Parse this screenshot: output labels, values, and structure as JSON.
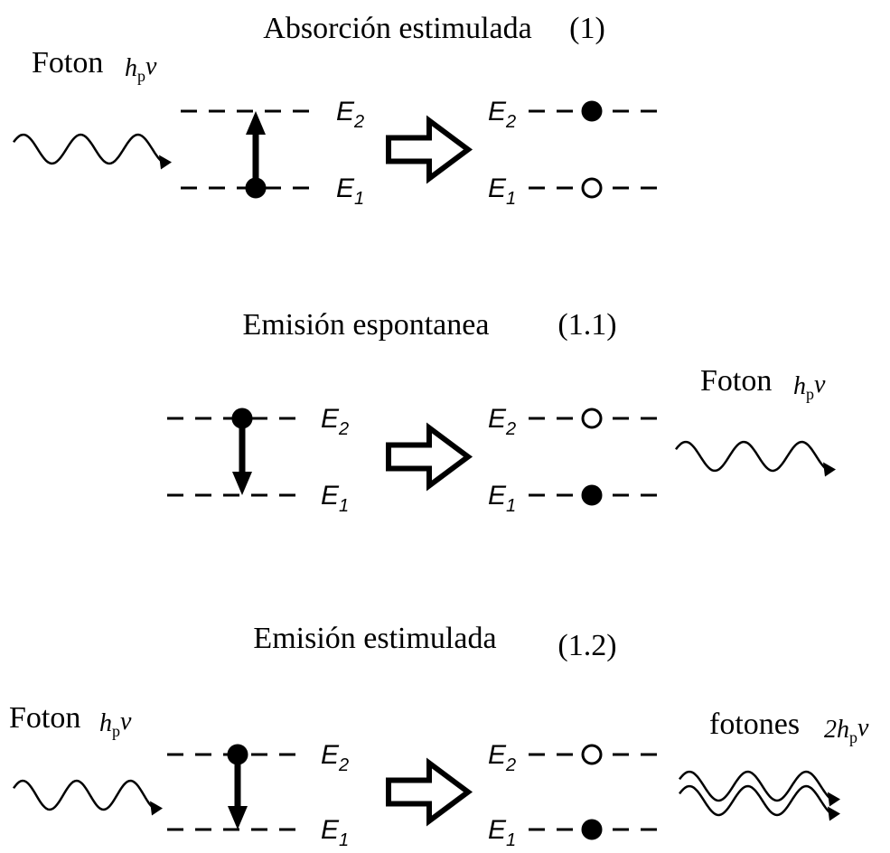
{
  "sections": [
    {
      "title": "Absorción estimulada",
      "number": "(1)",
      "photon_in": {
        "text": "Foton",
        "symbol": {
          "main": "h",
          "sub": "p",
          "tail": "ν"
        }
      },
      "levels": {
        "upper": {
          "main": "E",
          "sub": "2"
        },
        "lower": {
          "main": "E",
          "sub": "1"
        }
      }
    },
    {
      "title": "Emisión espontanea",
      "number": "(1.1)",
      "photon_out": {
        "text": "Foton",
        "symbol": {
          "main": "h",
          "sub": "p",
          "tail": "ν"
        }
      },
      "levels": {
        "upper": {
          "main": "E",
          "sub": "2"
        },
        "lower": {
          "main": "E",
          "sub": "1"
        }
      }
    },
    {
      "title": "Emisión estimulada",
      "number": "(1.2)",
      "photon_in": {
        "text": "Foton",
        "symbol": {
          "main": "h",
          "sub": "p",
          "tail": "ν"
        }
      },
      "photon_out": {
        "text": "fotones",
        "symbol": {
          "main": "2h",
          "sub": "p",
          "tail": "ν"
        }
      },
      "levels": {
        "upper": {
          "main": "E",
          "sub": "2"
        },
        "lower": {
          "main": "E",
          "sub": "1"
        }
      }
    }
  ]
}
